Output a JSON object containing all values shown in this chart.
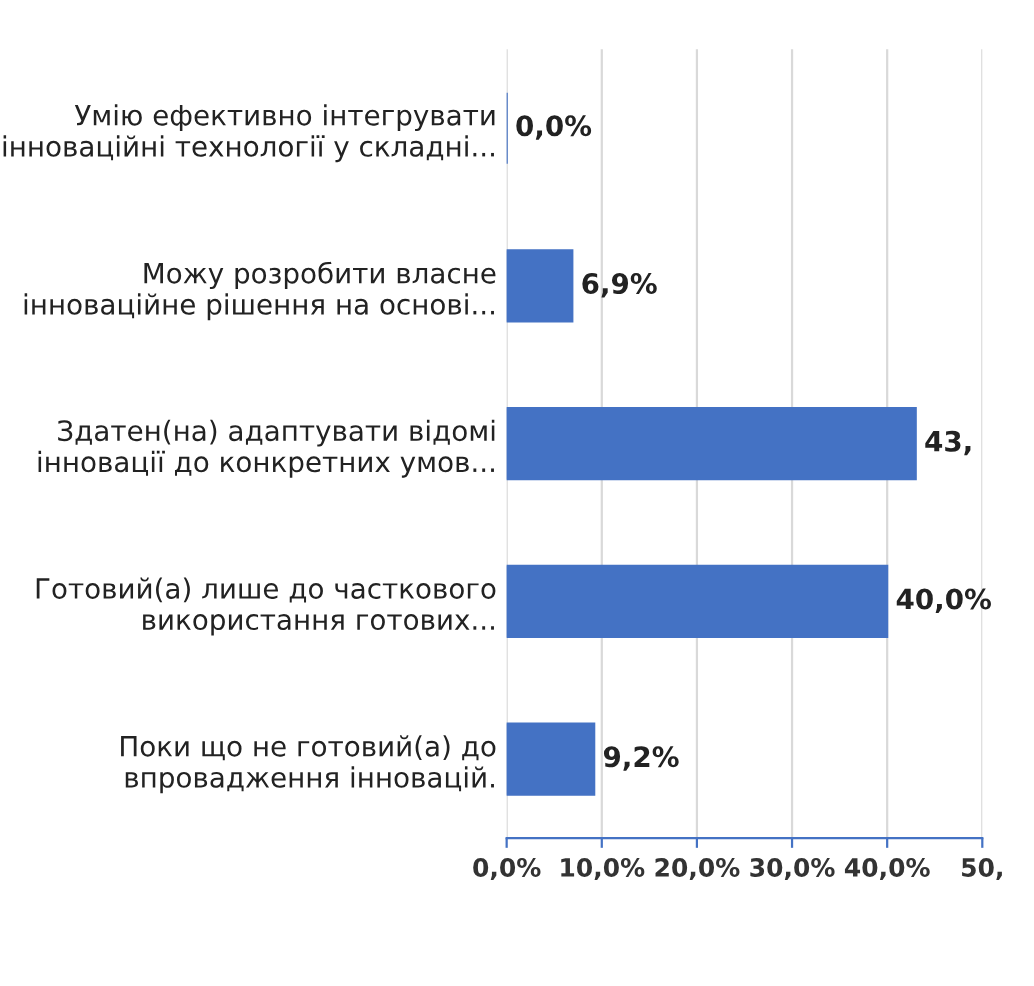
{
  "chart_data": {
    "type": "bar",
    "orientation": "horizontal",
    "categories": [
      "Умію ефективно інтегрувати\nінноваційні технології у складні...",
      "Можу розробити власне\nінноваційне рішення на основі...",
      "Здатен(на) адаптувати відомі\nінновації до конкретних умов...",
      "Готовий(а) лише до часткового\nвикористання готових...",
      "Поки що не готовий(а) до\nвпровадження інновацій."
    ],
    "values": [
      0.0,
      6.9,
      43,
      40.0,
      9.2
    ],
    "value_labels": [
      "0,0%",
      "6,9%",
      "43,",
      "40,0%",
      "9,2%"
    ],
    "color": "#4472c4",
    "xlim": [
      0,
      50
    ],
    "xticks": [
      {
        "value": 0,
        "label": "0,0%"
      },
      {
        "value": 10,
        "label": "10,0%"
      },
      {
        "value": 20,
        "label": "20,0%"
      },
      {
        "value": 30,
        "label": "30,0%"
      },
      {
        "value": 40,
        "label": "40,0%"
      },
      {
        "value": 50,
        "label": "50,"
      }
    ],
    "grid": "x"
  }
}
